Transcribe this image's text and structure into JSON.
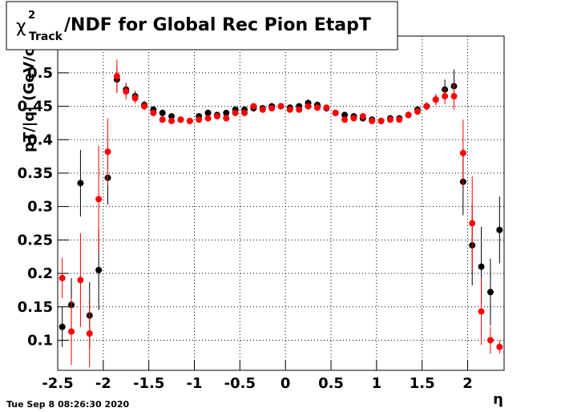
{
  "chart_data": {
    "type": "scatter",
    "title_symbol": "χ",
    "title_sup": "2",
    "title_sub": "Track",
    "title_rest": "/NDF for Global Rec Pion EtapT",
    "x_label": "η",
    "y_label": "pT/|q| (GeV/c)",
    "timestamp": "Tue Sep  8 08:26:30 2020",
    "x": [
      -2.45,
      -2.35,
      -2.25,
      -2.15,
      -2.05,
      -1.95,
      -1.85,
      -1.75,
      -1.65,
      -1.55,
      -1.45,
      -1.35,
      -1.25,
      -1.15,
      -1.05,
      -0.95,
      -0.85,
      -0.75,
      -0.65,
      -0.55,
      -0.45,
      -0.35,
      -0.25,
      -0.15,
      -0.05,
      0.05,
      0.15,
      0.25,
      0.35,
      0.45,
      0.55,
      0.65,
      0.75,
      0.85,
      0.95,
      1.05,
      1.15,
      1.25,
      1.35,
      1.45,
      1.55,
      1.65,
      1.75,
      1.85,
      1.95,
      2.05,
      2.15,
      2.25,
      2.35
    ],
    "series": [
      {
        "color": "#000000",
        "values": [
          0.12,
          0.153,
          0.335,
          0.137,
          0.205,
          0.343,
          0.49,
          0.475,
          0.465,
          0.452,
          0.445,
          0.44,
          0.435,
          0.43,
          0.428,
          0.435,
          0.44,
          0.437,
          0.44,
          0.445,
          0.445,
          0.447,
          0.447,
          0.45,
          0.45,
          0.448,
          0.45,
          0.455,
          0.452,
          0.447,
          0.44,
          0.437,
          0.435,
          0.432,
          0.43,
          0.428,
          0.432,
          0.432,
          0.437,
          0.445,
          0.45,
          0.46,
          0.475,
          0.48,
          0.337,
          0.242,
          0.21,
          0.172,
          0.265
        ],
        "errors": [
          0.03,
          0.04,
          0.05,
          0.05,
          0.06,
          0.04,
          0.02,
          0.01,
          0.008,
          0.006,
          0.005,
          0.005,
          0.004,
          0.004,
          0.004,
          0.004,
          0.004,
          0.004,
          0.004,
          0.004,
          0.004,
          0.004,
          0.004,
          0.004,
          0.004,
          0.004,
          0.004,
          0.004,
          0.004,
          0.004,
          0.004,
          0.004,
          0.004,
          0.004,
          0.004,
          0.004,
          0.004,
          0.004,
          0.005,
          0.005,
          0.006,
          0.008,
          0.015,
          0.025,
          0.05,
          0.06,
          0.06,
          0.05,
          0.05
        ]
      },
      {
        "color": "#ff0000",
        "values": [
          0.193,
          0.113,
          0.19,
          0.11,
          0.311,
          0.382,
          0.495,
          0.472,
          0.462,
          0.45,
          0.44,
          0.43,
          0.428,
          0.43,
          0.428,
          0.43,
          0.432,
          0.435,
          0.432,
          0.44,
          0.44,
          0.45,
          0.445,
          0.447,
          0.45,
          0.445,
          0.445,
          0.45,
          0.448,
          0.448,
          0.44,
          0.43,
          0.432,
          0.435,
          0.428,
          0.428,
          0.43,
          0.43,
          0.437,
          0.442,
          0.45,
          0.46,
          0.465,
          0.465,
          0.38,
          0.275,
          0.143,
          0.1,
          0.09
        ],
        "errors": [
          0.03,
          0.05,
          0.07,
          0.05,
          0.08,
          0.05,
          0.025,
          0.012,
          0.008,
          0.006,
          0.005,
          0.005,
          0.004,
          0.004,
          0.004,
          0.004,
          0.004,
          0.004,
          0.004,
          0.004,
          0.004,
          0.004,
          0.004,
          0.004,
          0.004,
          0.004,
          0.004,
          0.004,
          0.004,
          0.004,
          0.004,
          0.004,
          0.004,
          0.004,
          0.004,
          0.004,
          0.004,
          0.004,
          0.005,
          0.005,
          0.006,
          0.008,
          0.012,
          0.02,
          0.05,
          0.07,
          0.05,
          0.02,
          0.01
        ]
      }
    ],
    "xlim": [
      -2.5,
      2.4
    ],
    "ylim": [
      0.055,
      0.555
    ],
    "xticks": [
      -2.5,
      -2,
      -1.5,
      -1,
      -0.5,
      0,
      0.5,
      1,
      1.5,
      2
    ],
    "yticks": [
      0.1,
      0.15,
      0.2,
      0.25,
      0.3,
      0.35,
      0.4,
      0.45,
      0.5
    ],
    "grid": true
  }
}
